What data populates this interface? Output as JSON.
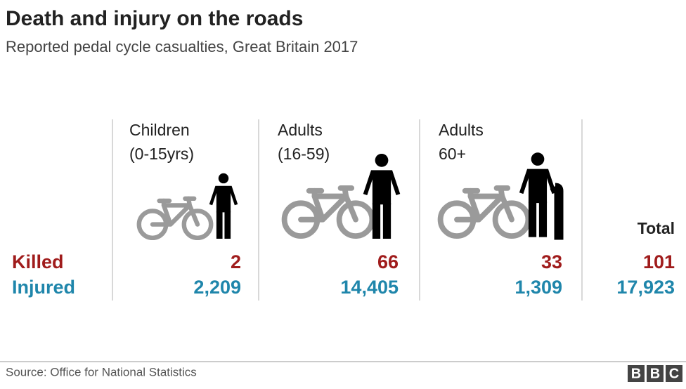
{
  "header": {
    "title": "Death and injury on the roads",
    "subtitle": "Reported pedal cycle casualties, Great Britain 2017"
  },
  "table": {
    "columns": [
      {
        "lines": [
          "Children",
          "(0-15yrs)"
        ]
      },
      {
        "lines": [
          "Adults",
          "(16-59)"
        ]
      },
      {
        "lines": [
          "Adults",
          "60+"
        ]
      }
    ],
    "total_label": "Total",
    "rows": [
      {
        "label": "Killed",
        "values": [
          "2",
          "66",
          "33",
          "101"
        ]
      },
      {
        "label": "Injured",
        "values": [
          "2,209",
          "14,405",
          "1,309",
          "17,923"
        ]
      }
    ]
  },
  "footer": {
    "source": "Source: Office for National Statistics",
    "logo": [
      "B",
      "B",
      "C"
    ]
  }
}
